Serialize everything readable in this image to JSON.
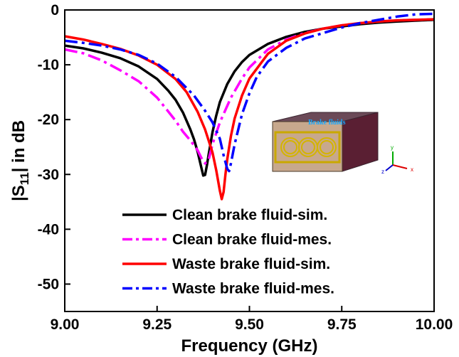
{
  "chart_data": {
    "type": "line",
    "xlabel": "Frequency (GHz)",
    "ylabel_main": "|S",
    "ylabel_sub": "11",
    "ylabel_tail": "| in dB",
    "xlim": [
      9.0,
      10.0
    ],
    "ylim": [
      -55,
      0
    ],
    "xticks": [
      "9.00",
      "9.25",
      "9.50",
      "9.75",
      "10.00"
    ],
    "yticks": [
      "0",
      "-10",
      "-20",
      "-30",
      "-40",
      "-50"
    ],
    "xtick_values": [
      9.0,
      9.25,
      9.5,
      9.75,
      10.0
    ],
    "ytick_values": [
      0,
      -10,
      -20,
      -30,
      -40,
      -50
    ],
    "grid": false,
    "legend_position": "lower-center",
    "series": [
      {
        "name": "Clean brake fluid-sim.",
        "color": "#000000",
        "style": "solid",
        "x": [
          9.0,
          9.05,
          9.1,
          9.15,
          9.2,
          9.25,
          9.28,
          9.3,
          9.32,
          9.34,
          9.35,
          9.36,
          9.37,
          9.375,
          9.38,
          9.385,
          9.39,
          9.4,
          9.41,
          9.42,
          9.44,
          9.46,
          9.48,
          9.5,
          9.55,
          9.6,
          9.65,
          9.7,
          9.75,
          9.8,
          9.85,
          9.9,
          9.95,
          10.0
        ],
        "y": [
          -6.5,
          -7.0,
          -7.8,
          -8.8,
          -10.3,
          -12.6,
          -14.7,
          -16.4,
          -18.7,
          -21.8,
          -23.6,
          -25.9,
          -28.8,
          -30.2,
          -30.1,
          -28.3,
          -26.2,
          -22.3,
          -19.3,
          -16.8,
          -13.5,
          -11.2,
          -9.5,
          -8.2,
          -6.2,
          -4.9,
          -4.0,
          -3.4,
          -3.0,
          -2.6,
          -2.3,
          -2.1,
          -1.95,
          -1.8
        ]
      },
      {
        "name": "Clean brake fluid-mes.",
        "color": "#ff00ff",
        "style": "dashdot",
        "x": [
          9.0,
          9.05,
          9.1,
          9.15,
          9.2,
          9.25,
          9.28,
          9.3,
          9.32,
          9.34,
          9.36,
          9.37,
          9.38,
          9.39,
          9.4,
          9.42,
          9.45,
          9.48,
          9.5,
          9.55,
          9.6,
          9.65,
          9.7,
          9.75,
          9.8,
          9.85,
          9.9,
          9.95,
          10.0
        ],
        "y": [
          -7.2,
          -7.9,
          -9.2,
          -11.0,
          -13.0,
          -16.0,
          -18.5,
          -20.2,
          -22.2,
          -23.8,
          -25.6,
          -27.0,
          -28.0,
          -27.2,
          -24.5,
          -20.5,
          -16.0,
          -12.5,
          -10.5,
          -7.2,
          -5.4,
          -4.2,
          -3.4,
          -2.8,
          -2.4,
          -2.1,
          -1.9,
          -1.8,
          -1.7
        ]
      },
      {
        "name": "Waste brake fluid-sim.",
        "color": "#ff0000",
        "style": "solid",
        "x": [
          9.0,
          9.05,
          9.1,
          9.15,
          9.2,
          9.25,
          9.3,
          9.33,
          9.36,
          9.38,
          9.4,
          9.41,
          9.42,
          9.425,
          9.43,
          9.435,
          9.44,
          9.45,
          9.46,
          9.48,
          9.5,
          9.55,
          9.6,
          9.65,
          9.7,
          9.75,
          9.8,
          9.85,
          9.9,
          9.95,
          10.0
        ],
        "y": [
          -4.8,
          -5.4,
          -6.2,
          -7.1,
          -8.3,
          -10.0,
          -12.6,
          -15.0,
          -18.6,
          -21.8,
          -26.0,
          -29.2,
          -33.0,
          -34.5,
          -33.2,
          -30.0,
          -27.2,
          -23.0,
          -19.8,
          -15.6,
          -12.5,
          -8.0,
          -5.6,
          -4.3,
          -3.4,
          -2.8,
          -2.4,
          -2.1,
          -1.9,
          -1.8,
          -1.7
        ]
      },
      {
        "name": "Waste brake fluid-mes.",
        "color": "#0000ff",
        "style": "dashdot",
        "x": [
          9.0,
          9.05,
          9.1,
          9.15,
          9.2,
          9.25,
          9.3,
          9.35,
          9.38,
          9.4,
          9.42,
          9.43,
          9.44,
          9.445,
          9.45,
          9.46,
          9.48,
          9.5,
          9.52,
          9.55,
          9.6,
          9.65,
          9.7,
          9.75,
          9.8,
          9.85,
          9.9,
          9.95,
          10.0
        ],
        "y": [
          -5.6,
          -6.0,
          -6.5,
          -7.2,
          -8.2,
          -9.8,
          -12.2,
          -15.6,
          -18.4,
          -20.5,
          -23.5,
          -26.5,
          -29.0,
          -29.4,
          -28.0,
          -24.5,
          -19.0,
          -15.2,
          -12.2,
          -9.4,
          -6.9,
          -5.2,
          -4.2,
          -3.2,
          -2.4,
          -1.8,
          -1.2,
          -0.8,
          -0.7
        ]
      }
    ]
  },
  "inset": {
    "label": "Brake fluids",
    "axis_y": "y",
    "axis_x": "x",
    "axis_z": "z"
  }
}
